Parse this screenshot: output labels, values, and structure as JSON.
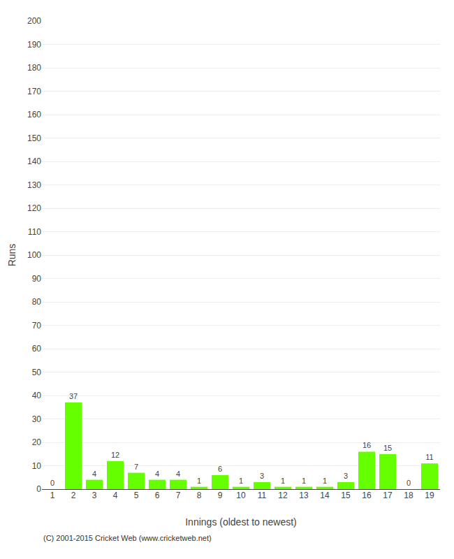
{
  "chart_data": {
    "type": "bar",
    "xlabel": "Innings (oldest to newest)",
    "ylabel": "Runs",
    "categories": [
      1,
      2,
      3,
      4,
      5,
      6,
      7,
      8,
      9,
      10,
      11,
      12,
      13,
      14,
      15,
      16,
      17,
      18,
      19
    ],
    "values": [
      0,
      37,
      4,
      12,
      7,
      4,
      4,
      1,
      6,
      1,
      3,
      1,
      1,
      1,
      3,
      16,
      15,
      0,
      11
    ],
    "color": "#66ff00",
    "ylim": [
      0,
      200
    ],
    "yticks": [
      0,
      10,
      20,
      30,
      40,
      50,
      60,
      70,
      80,
      90,
      100,
      110,
      120,
      130,
      140,
      150,
      160,
      170,
      180,
      190,
      200
    ],
    "grid": true,
    "data_labels": true,
    "annotations": [
      "(C) 2001-2015 Cricket Web (www.cricketweb.net)"
    ]
  }
}
